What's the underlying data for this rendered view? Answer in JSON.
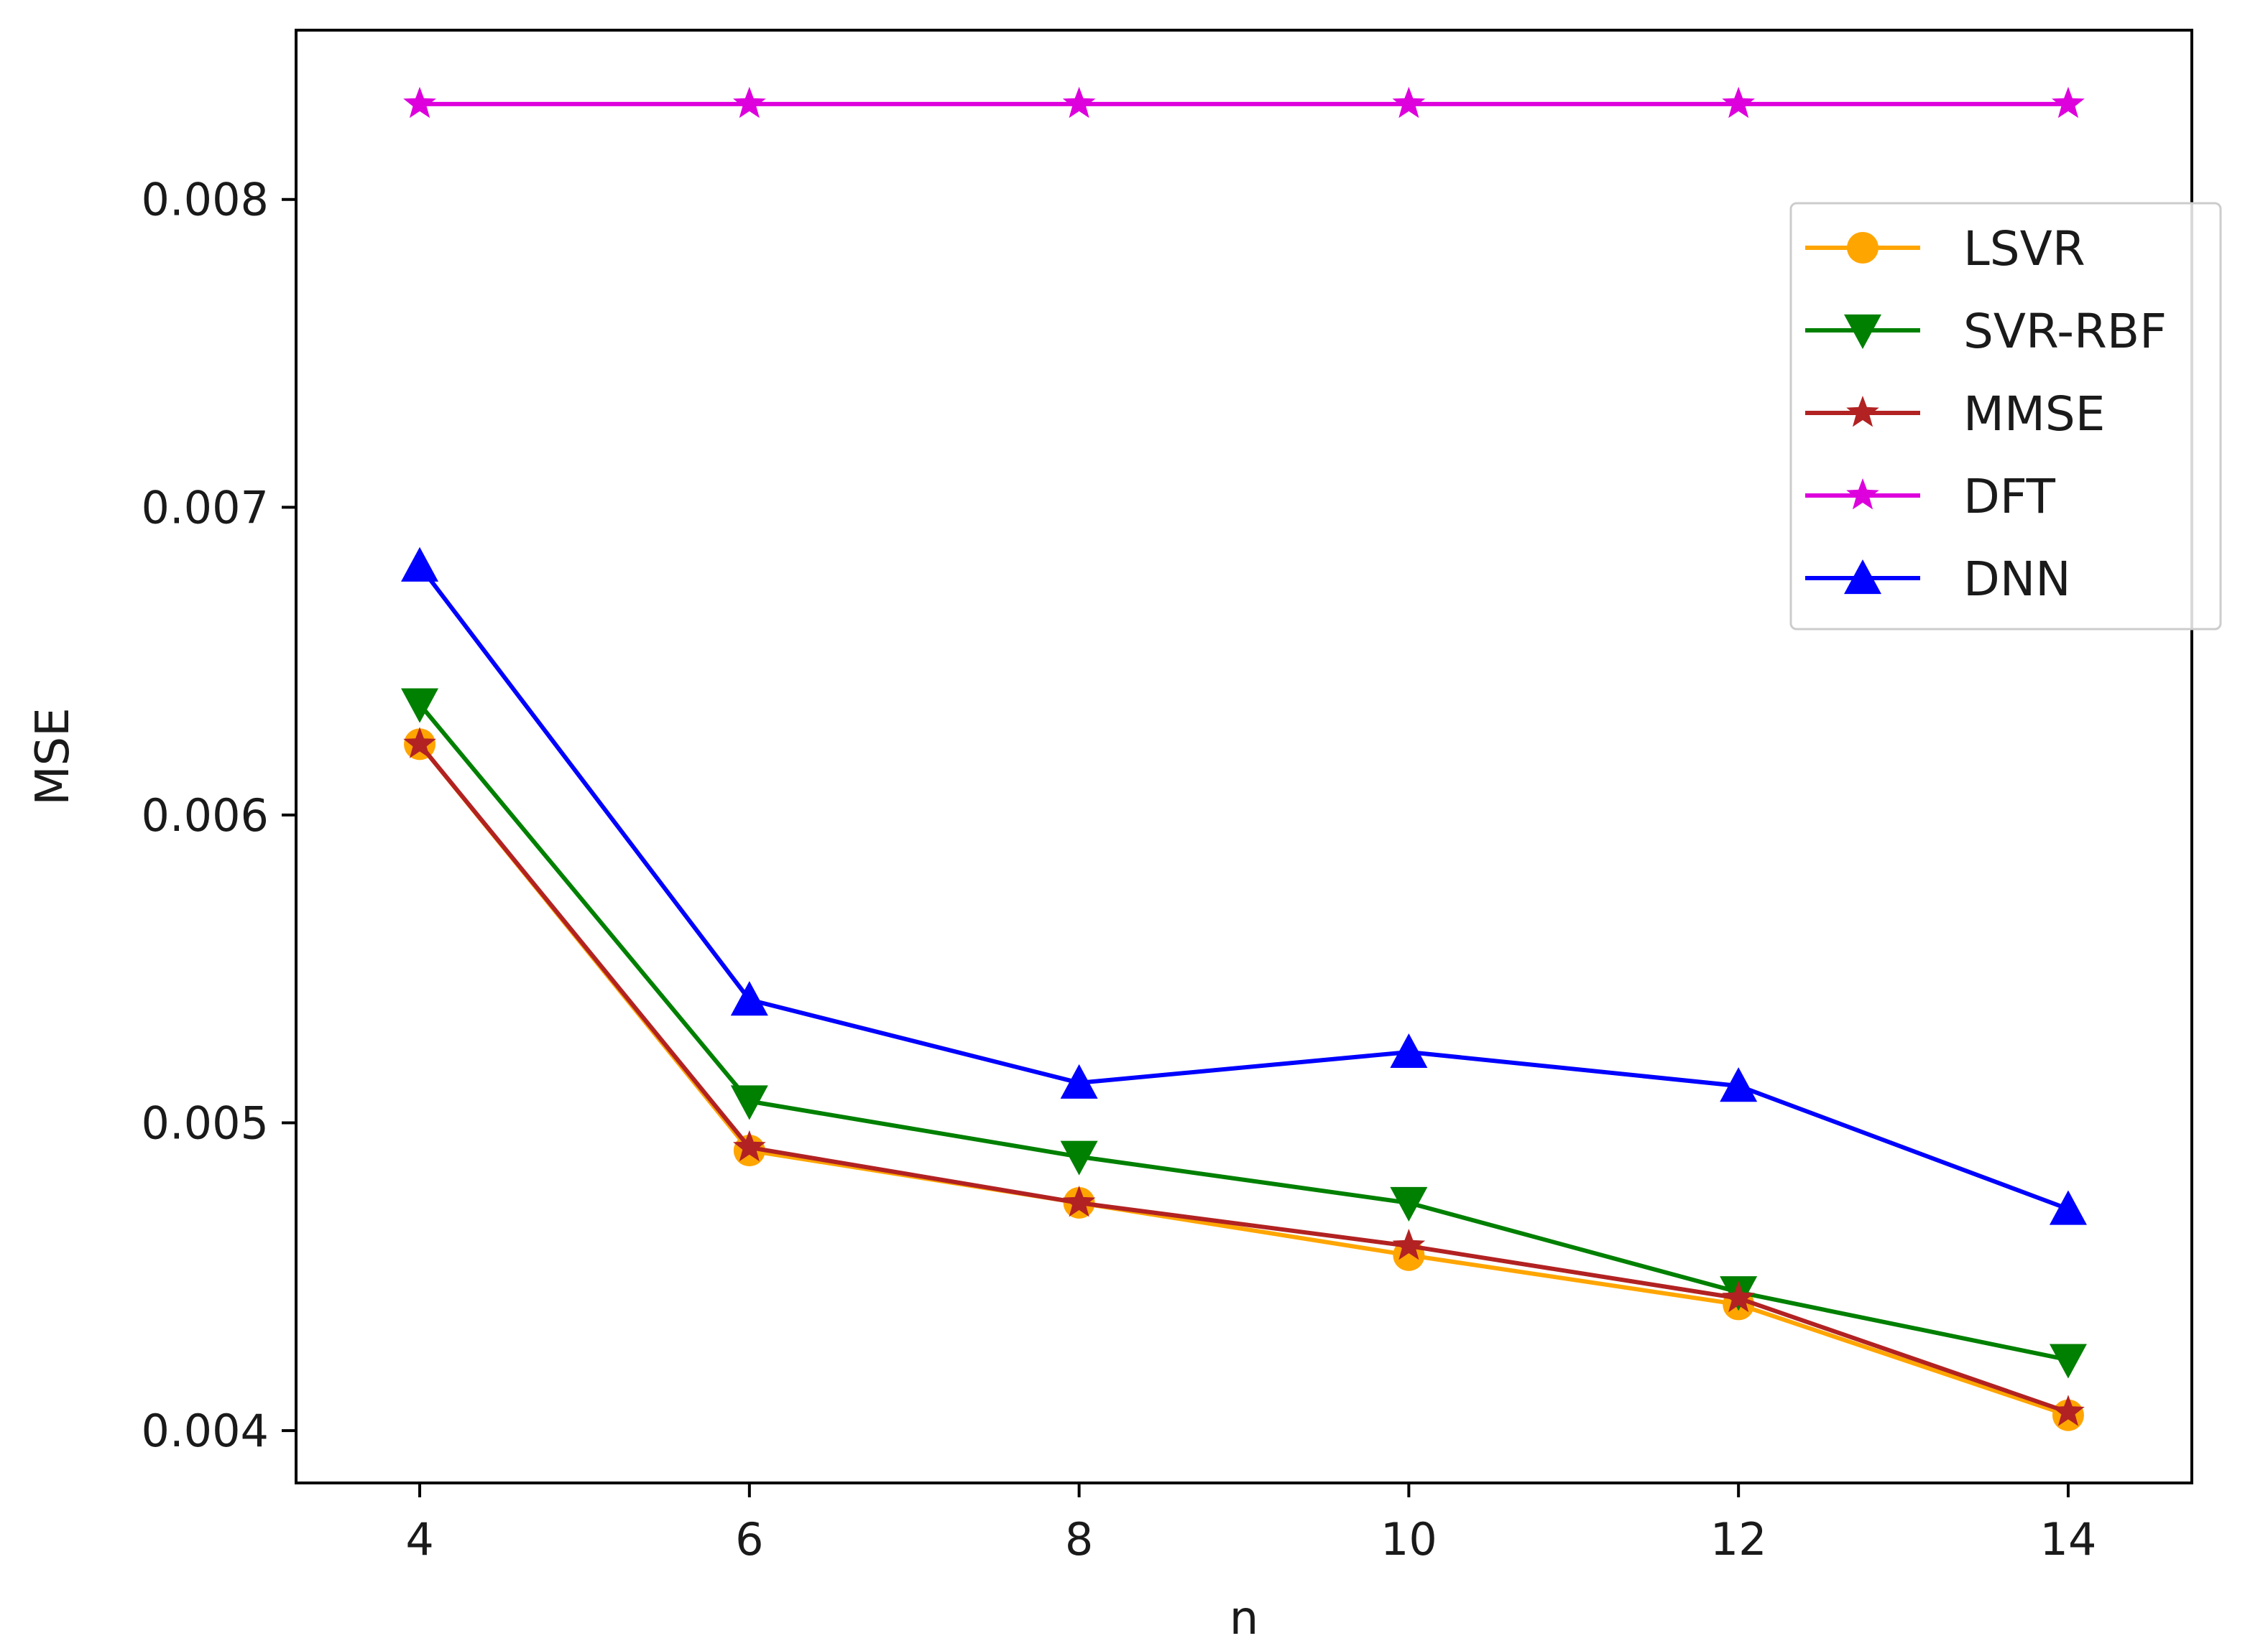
{
  "chart_data": {
    "type": "line",
    "title": "",
    "xlabel": "n",
    "ylabel": "MSE",
    "x": [
      4,
      6,
      8,
      10,
      12,
      14
    ],
    "xlim": [
      3.25,
      14.75
    ],
    "ylim": [
      0.00383,
      0.00855
    ],
    "xticks": [
      4,
      6,
      8,
      10,
      12,
      14
    ],
    "xtick_labels": [
      "4",
      "6",
      "8",
      "10",
      "12",
      "14"
    ],
    "yticks": [
      0.004,
      0.005,
      0.006,
      0.007,
      0.008
    ],
    "ytick_labels": [
      "0.004",
      "0.005",
      "0.006",
      "0.007",
      "0.008"
    ],
    "grid": false,
    "legend_position": "upper-right",
    "series": [
      {
        "name": "LSVR",
        "color": "#FFA500",
        "marker": "circle",
        "values": [
          0.00623,
          0.00491,
          0.00474,
          0.00457,
          0.00441,
          0.00405
        ]
      },
      {
        "name": "SVR-RBF",
        "color": "#008000",
        "marker": "triangle-down",
        "values": [
          0.00636,
          0.00507,
          0.00489,
          0.00474,
          0.00445,
          0.00423
        ]
      },
      {
        "name": "MMSE",
        "color": "#B22222",
        "marker": "star",
        "values": [
          0.00623,
          0.00492,
          0.00474,
          0.0046,
          0.00443,
          0.00406
        ]
      },
      {
        "name": "DFT",
        "color": "#DD00DD",
        "marker": "star",
        "values": [
          0.00831,
          0.00831,
          0.00831,
          0.00831,
          0.00831,
          0.00831
        ]
      },
      {
        "name": "DNN",
        "color": "#0000FF",
        "marker": "triangle-up",
        "values": [
          0.00681,
          0.0054,
          0.00513,
          0.00523,
          0.00512,
          0.00472
        ]
      }
    ]
  }
}
